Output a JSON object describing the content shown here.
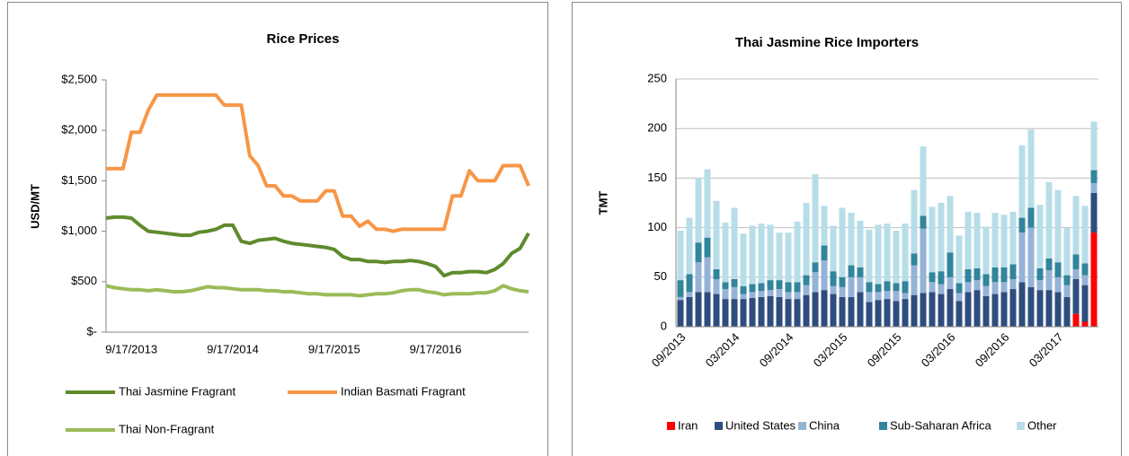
{
  "chart_data": [
    {
      "type": "line",
      "title": "Rice Prices",
      "y_label": "USD/MT",
      "categories": [
        null,
        null,
        null,
        "9/17/2013",
        null,
        null,
        null,
        null,
        null,
        null,
        null,
        null,
        null,
        null,
        null,
        "9/17/2014",
        null,
        null,
        null,
        null,
        null,
        null,
        null,
        null,
        null,
        null,
        null,
        "9/17/2015",
        null,
        null,
        null,
        null,
        null,
        null,
        null,
        null,
        null,
        null,
        null,
        "9/17/2016",
        null,
        null,
        null,
        null,
        null,
        null,
        null,
        null,
        null,
        null,
        null
      ],
      "series": [
        {
          "name": "Thai Jasmine Fragrant",
          "color": "#5f8b2c",
          "values": [
            1130,
            1140,
            1140,
            1130,
            1060,
            1000,
            990,
            980,
            970,
            960,
            960,
            990,
            1000,
            1020,
            1060,
            1060,
            900,
            880,
            910,
            920,
            930,
            900,
            880,
            870,
            860,
            850,
            840,
            820,
            750,
            720,
            720,
            700,
            700,
            690,
            700,
            700,
            710,
            700,
            680,
            650,
            560,
            590,
            590,
            600,
            600,
            590,
            620,
            680,
            780,
            830,
            980
          ]
        },
        {
          "name": "Indian Basmati Fragrant",
          "color": "#f79646",
          "values": [
            1620,
            1620,
            1620,
            1980,
            1980,
            2200,
            2350,
            2350,
            2350,
            2350,
            2350,
            2350,
            2350,
            2350,
            2250,
            2250,
            2250,
            1750,
            1650,
            1450,
            1450,
            1350,
            1350,
            1300,
            1300,
            1300,
            1400,
            1400,
            1150,
            1150,
            1050,
            1100,
            1020,
            1020,
            1000,
            1020,
            1020,
            1020,
            1020,
            1020,
            1020,
            1350,
            1350,
            1600,
            1500,
            1500,
            1500,
            1650,
            1650,
            1650,
            1450
          ]
        },
        {
          "name": "Thai Non-Fragrant",
          "color": "#9bbb59",
          "values": [
            460,
            440,
            430,
            420,
            420,
            410,
            420,
            410,
            400,
            400,
            410,
            430,
            450,
            440,
            440,
            430,
            420,
            420,
            420,
            410,
            410,
            400,
            400,
            390,
            380,
            380,
            370,
            370,
            370,
            370,
            360,
            370,
            380,
            380,
            390,
            410,
            420,
            420,
            400,
            390,
            370,
            380,
            380,
            380,
            390,
            390,
            410,
            460,
            430,
            410,
            400
          ]
        }
      ],
      "ylim": [
        0,
        2500
      ],
      "yticks": [
        {
          "value": 0,
          "label": "$-"
        },
        {
          "value": 500,
          "label": "$500"
        },
        {
          "value": 1000,
          "label": "$1,000"
        },
        {
          "value": 1500,
          "label": "$1,500"
        },
        {
          "value": 2000,
          "label": "$2,000"
        },
        {
          "value": 2500,
          "label": "$2,500"
        }
      ],
      "grid": false,
      "legend": "bottom"
    },
    {
      "type": "stacked_bar",
      "title": "Thai Jasmine Rice Importers",
      "y_label": "TMT",
      "categories": [
        "09/2013",
        null,
        null,
        null,
        null,
        null,
        "03/2014",
        null,
        null,
        null,
        null,
        null,
        "09/2014",
        null,
        null,
        null,
        null,
        null,
        "03/2015",
        null,
        null,
        null,
        null,
        null,
        "09/2015",
        null,
        null,
        null,
        null,
        null,
        "03/2016",
        null,
        null,
        null,
        null,
        null,
        "09/2016",
        null,
        null,
        null,
        null,
        null,
        "03/2017",
        null,
        null,
        null,
        null
      ],
      "series": [
        {
          "name": "Iran",
          "color": "#ff0000",
          "values": [
            0,
            0,
            0,
            0,
            0,
            0,
            0,
            0,
            0,
            0,
            0,
            0,
            0,
            0,
            0,
            0,
            0,
            0,
            0,
            0,
            0,
            0,
            0,
            0,
            0,
            0,
            0,
            0,
            0,
            0,
            0,
            0,
            0,
            0,
            0,
            0,
            0,
            0,
            0,
            0,
            0,
            0,
            0,
            0,
            13,
            5,
            95
          ]
        },
        {
          "name": "United States",
          "color": "#2e4d7e",
          "values": [
            27,
            30,
            35,
            35,
            33,
            28,
            28,
            28,
            29,
            30,
            31,
            30,
            28,
            28,
            32,
            35,
            37,
            33,
            30,
            30,
            35,
            25,
            27,
            28,
            26,
            28,
            32,
            34,
            35,
            33,
            38,
            26,
            35,
            37,
            31,
            33,
            35,
            38,
            45,
            40,
            37,
            37,
            35,
            30,
            35,
            37,
            40
          ]
        },
        {
          "name": "China",
          "color": "#95b3d7",
          "values": [
            3,
            5,
            30,
            35,
            15,
            10,
            12,
            5,
            6,
            6,
            6,
            8,
            7,
            7,
            10,
            20,
            30,
            8,
            10,
            20,
            15,
            10,
            8,
            8,
            10,
            6,
            30,
            65,
            10,
            10,
            12,
            8,
            10,
            10,
            10,
            12,
            10,
            10,
            50,
            60,
            10,
            20,
            15,
            12,
            10,
            10,
            10
          ]
        },
        {
          "name": "Sub-Saharan Africa",
          "color": "#31859c",
          "values": [
            17,
            18,
            20,
            20,
            10,
            7,
            8,
            8,
            8,
            8,
            10,
            9,
            10,
            10,
            10,
            10,
            15,
            15,
            10,
            12,
            10,
            10,
            8,
            10,
            8,
            12,
            12,
            13,
            10,
            13,
            25,
            10,
            13,
            12,
            12,
            15,
            15,
            15,
            15,
            20,
            12,
            12,
            15,
            10,
            15,
            12,
            13
          ]
        },
        {
          "name": "Other",
          "color": "#b7dee8",
          "values": [
            50,
            57,
            65,
            69,
            69,
            60,
            72,
            53,
            59,
            60,
            56,
            48,
            50,
            61,
            73,
            89,
            40,
            46,
            70,
            53,
            47,
            53,
            60,
            58,
            53,
            58,
            64,
            70,
            66,
            69,
            57,
            48,
            58,
            56,
            48,
            55,
            53,
            53,
            73,
            79,
            64,
            77,
            73,
            48,
            59,
            58,
            49
          ]
        }
      ],
      "ylim": [
        0,
        250
      ],
      "yticks": [
        0,
        50,
        100,
        150,
        200,
        250
      ],
      "grid": true,
      "legend": "bottom"
    }
  ]
}
